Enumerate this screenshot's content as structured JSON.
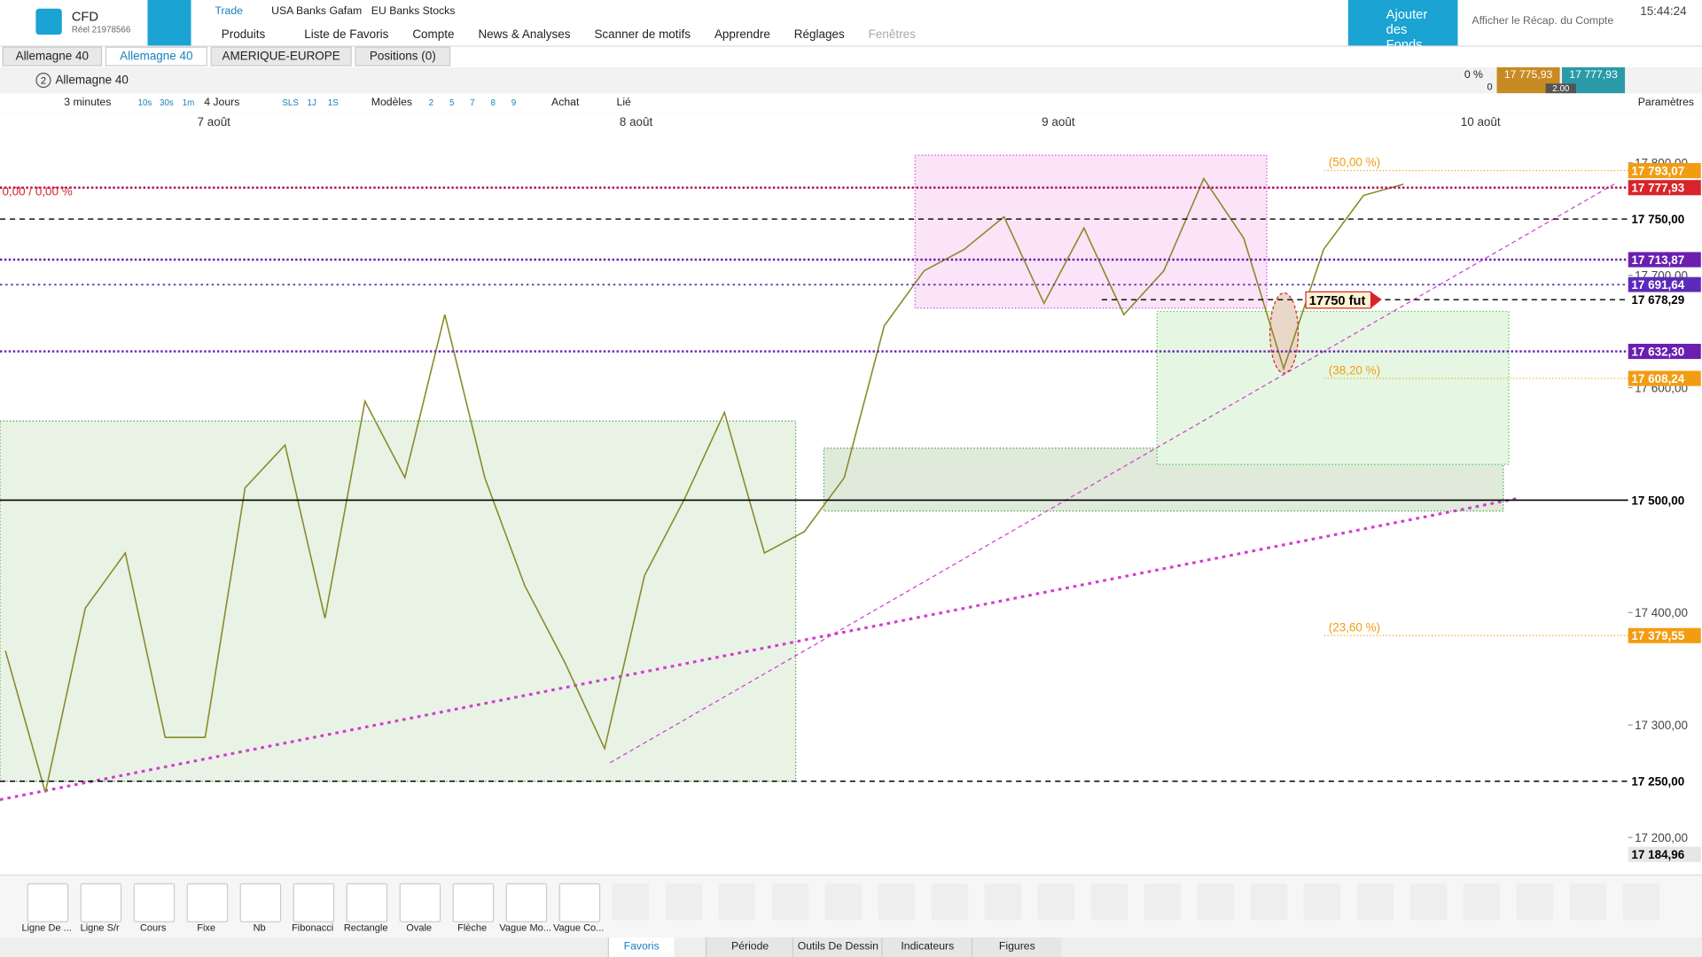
{
  "header": {
    "brand": "CFD",
    "account": "Réel 21978566",
    "top_tabs": [
      "Trade",
      "USA Banks Gafam",
      "EU Banks Stocks"
    ],
    "menu": [
      "Produits",
      "Liste de Favoris",
      "Compte",
      "News & Analyses",
      "Scanner de motifs",
      "Apprendre",
      "Réglages",
      "Fenêtres"
    ],
    "add_funds": "Ajouter des Fonds",
    "summary": "Afficher le Récap. du Compte",
    "time": "15:44:24"
  },
  "tabs": [
    "Allemagne 40",
    "Allemagne 40",
    "AMERIQUE-EUROPE",
    "Positions (0)"
  ],
  "chart_header": {
    "instrument_num": "2",
    "instrument": "Allemagne 40",
    "change": "0 %",
    "change_abs": "0",
    "bid": "17 775,93",
    "ask": "17 777,93",
    "spread": "2.00"
  },
  "toolbar": {
    "period": "3 minutes",
    "intervals": [
      "10s",
      "30s",
      "1m"
    ],
    "range": "4 Jours",
    "quick": [
      "SLS",
      "1J",
      "1S"
    ],
    "models": "Modèles",
    "nums": [
      "2",
      "5",
      "7",
      "8",
      "9"
    ],
    "buy": "Achat",
    "linked": "Lié",
    "settings": "Paramètres"
  },
  "chart_data": {
    "type": "line",
    "color": "#8a8a2a",
    "date_labels": [
      "7 août",
      "8 août",
      "9 août",
      "10 août"
    ],
    "categories": [
      null,
      null,
      null,
      null,
      null,
      null,
      null,
      null,
      null,
      null,
      null,
      null,
      null,
      null,
      null,
      null,
      null,
      null,
      null,
      null,
      null,
      null,
      null,
      null,
      null,
      null,
      null,
      null,
      null,
      null,
      null,
      null,
      null,
      null,
      null,
      null
    ],
    "values": [
      17366,
      17240,
      17404,
      17453,
      17289,
      17289,
      17511,
      17549,
      17395,
      17588,
      17520,
      17665,
      17520,
      17424,
      17356,
      17279,
      17433,
      17501,
      17578,
      17453,
      17472,
      17520,
      17655,
      17704,
      17723,
      17752,
      17675,
      17742,
      17665,
      17704,
      17786,
      17733,
      17617,
      17723,
      17771,
      17781
    ],
    "ylim": [
      17168,
      17829
    ],
    "yticks": [
      {
        "value": 17200,
        "label": "17 200,00"
      },
      {
        "value": 17300,
        "label": "17 300,00"
      },
      {
        "value": 17400,
        "label": "17 400,00"
      },
      {
        "value": 17600,
        "label": "17 600,00"
      },
      {
        "value": 17700,
        "label": "17 700,00"
      },
      {
        "value": 17800,
        "label": "17 800,00"
      }
    ],
    "price_labels": [
      {
        "value": 17793.07,
        "label": "17 793,07",
        "color": "#f39c12",
        "line": "dotted-orange"
      },
      {
        "value": 17777.93,
        "label": "17 777,93",
        "color": "#d9232a",
        "line": "dotted-red"
      },
      {
        "value": 17750,
        "label": "17 750,00",
        "color": "#ffffff",
        "line": "dashed"
      },
      {
        "value": 17713.87,
        "label": "17 713,87",
        "color": "#6a1fb0",
        "line": "dotted-purple"
      },
      {
        "value": 17691.64,
        "label": "17 691,64",
        "color": "#5b2ab8",
        "line": "dotted-blue"
      },
      {
        "value": 17678.29,
        "label": "17 678,29",
        "color": "#ffffff",
        "line": "dashed"
      },
      {
        "value": 17632.3,
        "label": "17 632,30",
        "color": "#6a1fb0",
        "line": "dotted-purple"
      },
      {
        "value": 17608.24,
        "label": "17 608,24",
        "color": "#f39c12",
        "line": "dotted-orange"
      },
      {
        "value": 17500,
        "label": "17 500,00",
        "color": "#ffffff",
        "line": "solid"
      },
      {
        "value": 17379.55,
        "label": "17 379,55",
        "color": "#f39c12",
        "line": "dotted-orange"
      },
      {
        "value": 17250,
        "label": "17 250,00",
        "color": "#ffffff",
        "line": "dashed"
      },
      {
        "value": 17184.96,
        "label": "17 184,96",
        "color": "#e6e6e6",
        "line": "none"
      }
    ],
    "annotations": {
      "fib_50": "(50,00 %)",
      "fib_38": "(38,20 %)",
      "fib_23": "(23,60 %)",
      "pct": "0,00 / 0,00 %",
      "fut": "17750 fut"
    }
  },
  "drawing_tools": [
    "Ligne De ...",
    "Ligne S/r",
    "Cours",
    "Fixe",
    "Nb",
    "Fibonacci",
    "Rectangle",
    "Ovale",
    "Flèche",
    "Vague Mo...",
    "Vague Co..."
  ],
  "bottom_tabs": [
    "Favoris",
    "Période",
    "Outils De Dessin",
    "Indicateurs",
    "Figures"
  ]
}
